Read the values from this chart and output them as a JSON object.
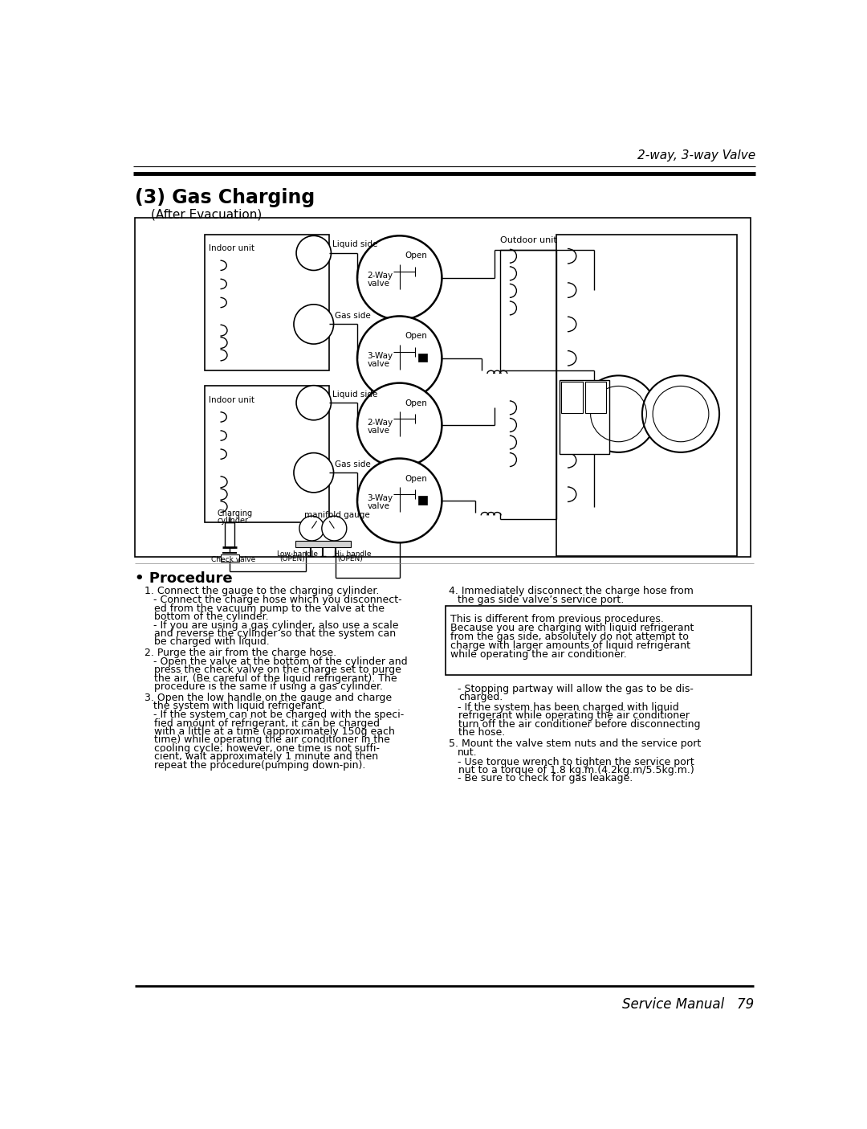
{
  "page_title_right": "2-way, 3-way Valve",
  "section_title": "(3) Gas Charging",
  "section_subtitle": "(After Evacuation)",
  "footer_right": "Service Manual   79",
  "bg_color": "#ffffff"
}
